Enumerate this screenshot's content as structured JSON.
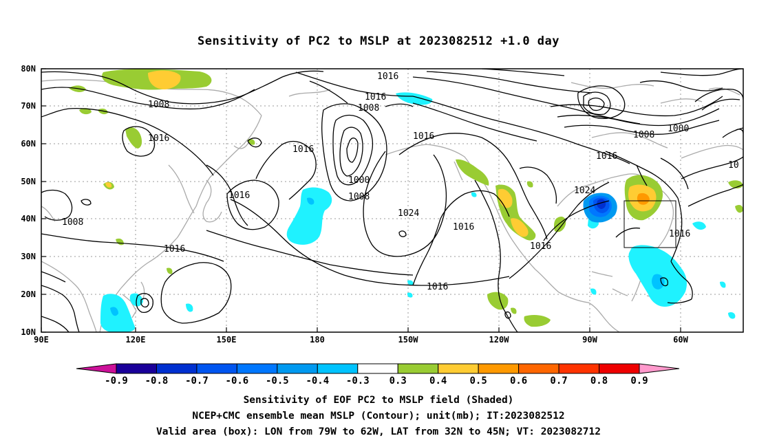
{
  "title": "Sensitivity of PC2 to MSLP at 2023082512 +1.0 day",
  "map": {
    "lon_ticks": [
      "90E",
      "120E",
      "150E",
      "180",
      "150W",
      "120W",
      "90W",
      "60W"
    ],
    "lat_ticks": [
      "80N",
      "70N",
      "60N",
      "50N",
      "40N",
      "30N",
      "20N",
      "10N"
    ],
    "contour_labels": [
      {
        "id": "c1",
        "text": "1016"
      },
      {
        "id": "c2",
        "text": "1016"
      },
      {
        "id": "c3",
        "text": "1008"
      },
      {
        "id": "c4",
        "text": "1008"
      },
      {
        "id": "c5",
        "text": "1016"
      },
      {
        "id": "c6",
        "text": "1016"
      },
      {
        "id": "c7",
        "text": "1000"
      },
      {
        "id": "c8",
        "text": "1008"
      },
      {
        "id": "c9",
        "text": "1016"
      },
      {
        "id": "c10",
        "text": "1016"
      },
      {
        "id": "c11",
        "text": "1008"
      },
      {
        "id": "c12",
        "text": "1024"
      },
      {
        "id": "c13",
        "text": "1016"
      },
      {
        "id": "c14",
        "text": "1016"
      },
      {
        "id": "c15",
        "text": "1016"
      },
      {
        "id": "c16",
        "text": "1016"
      },
      {
        "id": "c17",
        "text": "1024"
      },
      {
        "id": "c18",
        "text": "1008"
      },
      {
        "id": "c19",
        "text": "1000"
      },
      {
        "id": "c20",
        "text": "1016"
      },
      {
        "id": "c21",
        "text": "1016"
      },
      {
        "id": "c22",
        "text": "10"
      }
    ]
  },
  "colorbar": {
    "labels": [
      "-0.9",
      "-0.8",
      "-0.7",
      "-0.6",
      "-0.5",
      "-0.4",
      "-0.3",
      "0.3",
      "0.4",
      "0.5",
      "0.6",
      "0.7",
      "0.8",
      "0.9"
    ],
    "colors": [
      "#1a0099",
      "#0030d0",
      "#0055f0",
      "#0077ff",
      "#0099f0",
      "#00c3ff",
      "#1ff2ff",
      "#ffffff",
      "#99cc33",
      "#ffcc33",
      "#ff9900",
      "#ff6600",
      "#ff3300",
      "#ee0000"
    ],
    "left_cap_color": "#cc1199",
    "right_cap_color": "#ff99cc"
  },
  "captions": {
    "line1": "Sensitivity of EOF PC2 to MSLP field (Shaded)",
    "line2": "NCEP+CMC ensemble mean MSLP (Contour); unit(mb); IT:2023082512",
    "line3": "Valid area (box): LON from 79W to 62W, LAT from 32N to 45N; VT: 2023082712"
  }
}
